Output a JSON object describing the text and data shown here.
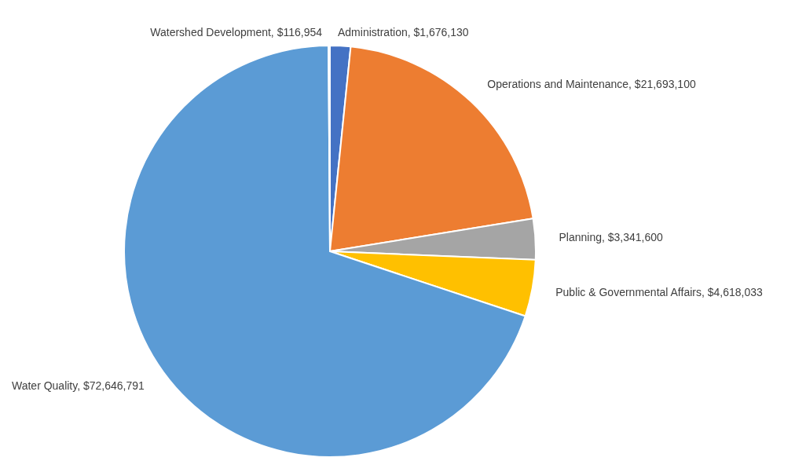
{
  "chart_data": {
    "type": "pie",
    "categories": [
      "Administration",
      "Operations and Maintenance",
      "Planning",
      "Public & Governmental Affairs",
      "Water Quality",
      "Watershed Development"
    ],
    "values": [
      1676130,
      21693100,
      3341600,
      4618033,
      72646791,
      116954
    ],
    "value_labels": [
      "$1,676,130",
      "$21,693,100",
      "$3,341,600",
      "$4,618,033",
      "$72,646,791",
      "$116,954"
    ],
    "colors": [
      "#4472c4",
      "#ed7d31",
      "#a5a5a5",
      "#ffc000",
      "#5b9bd5",
      "#70ad47"
    ]
  }
}
